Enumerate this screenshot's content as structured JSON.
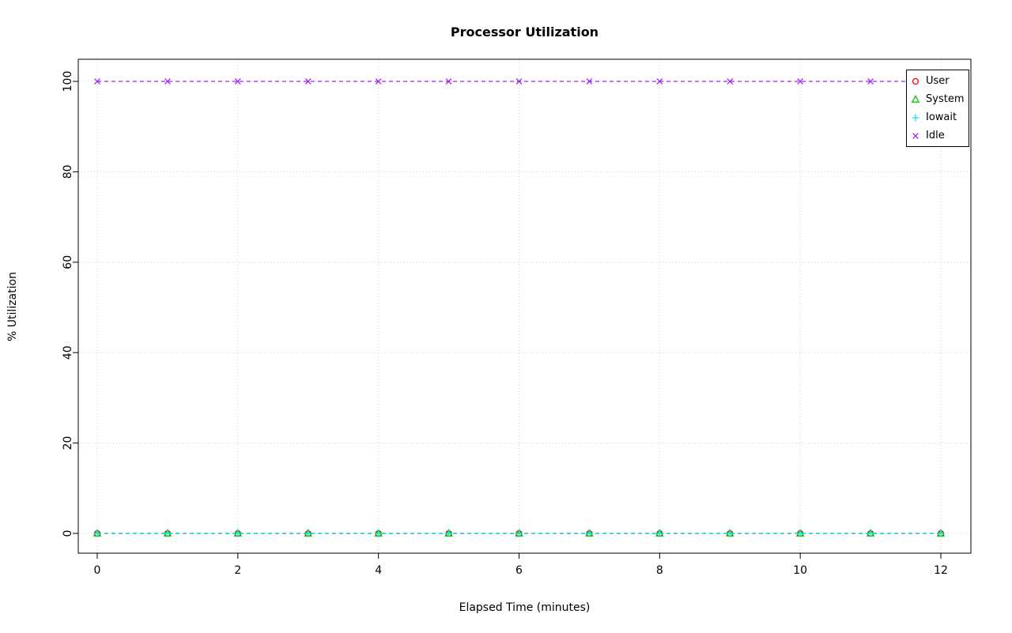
{
  "chart_data": {
    "type": "scatter",
    "title": "Processor Utilization",
    "xlabel": "Elapsed Time (minutes)",
    "ylabel": "% Utilization",
    "xlim": [
      0,
      12
    ],
    "ylim": [
      0,
      100
    ],
    "xticks": [
      0,
      2,
      4,
      6,
      8,
      10,
      12
    ],
    "yticks": [
      0,
      20,
      40,
      60,
      80,
      100
    ],
    "grid": true,
    "grid_style": "dotted",
    "grid_color": "#d0d0d0",
    "line_style": "dashed",
    "legend_position": "top-right",
    "x": [
      0,
      1,
      2,
      3,
      4,
      5,
      6,
      7,
      8,
      9,
      10,
      11,
      12
    ],
    "series": [
      {
        "name": "User",
        "color": "#ff0000",
        "marker": "circle",
        "values": [
          0,
          0,
          0,
          0,
          0,
          0,
          0,
          0,
          0,
          0,
          0,
          0,
          0
        ]
      },
      {
        "name": "System",
        "color": "#00cd00",
        "marker": "triangle",
        "values": [
          0,
          0,
          0,
          0,
          0,
          0,
          0,
          0,
          0,
          0,
          0,
          0,
          0
        ]
      },
      {
        "name": "Iowait",
        "color": "#00e5ee",
        "marker": "plus",
        "values": [
          0,
          0,
          0,
          0,
          0,
          0,
          0,
          0,
          0,
          0,
          0,
          0,
          0
        ]
      },
      {
        "name": "Idle",
        "color": "#a020f0",
        "marker": "x",
        "values": [
          100,
          100,
          100,
          100,
          100,
          100,
          100,
          100,
          100,
          100,
          100,
          100,
          100
        ]
      }
    ]
  }
}
